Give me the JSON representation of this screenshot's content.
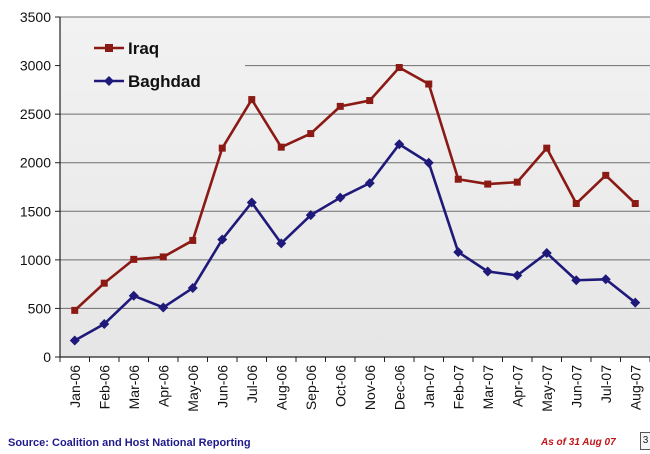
{
  "chart_data": {
    "type": "line",
    "title": "",
    "xlabel": "",
    "ylabel": "",
    "ylim": [
      0,
      3500
    ],
    "yticks": [
      0,
      500,
      1000,
      1500,
      2000,
      2500,
      3000,
      3500
    ],
    "grid": true,
    "legend_position": "top-left",
    "categories": [
      "Jan-06",
      "Feb-06",
      "Mar-06",
      "Apr-06",
      "May-06",
      "Jun-06",
      "Jul-06",
      "Aug-06",
      "Sep-06",
      "Oct-06",
      "Nov-06",
      "Dec-06",
      "Jan-07",
      "Feb-07",
      "Mar-07",
      "Apr-07",
      "May-07",
      "Jun-07",
      "Jul-07",
      "Aug-07"
    ],
    "series": [
      {
        "name": "Iraq",
        "color": "#8b1a14",
        "marker": "square",
        "values": [
          480,
          760,
          1005,
          1030,
          1200,
          2150,
          2650,
          2160,
          2300,
          2580,
          2640,
          2980,
          2810,
          1830,
          1780,
          1800,
          2150,
          1580,
          1870,
          1580
        ]
      },
      {
        "name": "Baghdad",
        "color": "#1f1a7a",
        "marker": "diamond",
        "values": [
          170,
          340,
          630,
          510,
          710,
          1210,
          1590,
          1170,
          1460,
          1640,
          1790,
          2190,
          2000,
          1080,
          880,
          840,
          1070,
          790,
          800,
          560
        ]
      }
    ]
  },
  "footer": {
    "source": "Source: Coalition and Host National Reporting",
    "as_of": "As of 31 Aug 07"
  },
  "colors": {
    "plot_background": "#e6e6e6",
    "gridline": "#6e6e6e"
  }
}
